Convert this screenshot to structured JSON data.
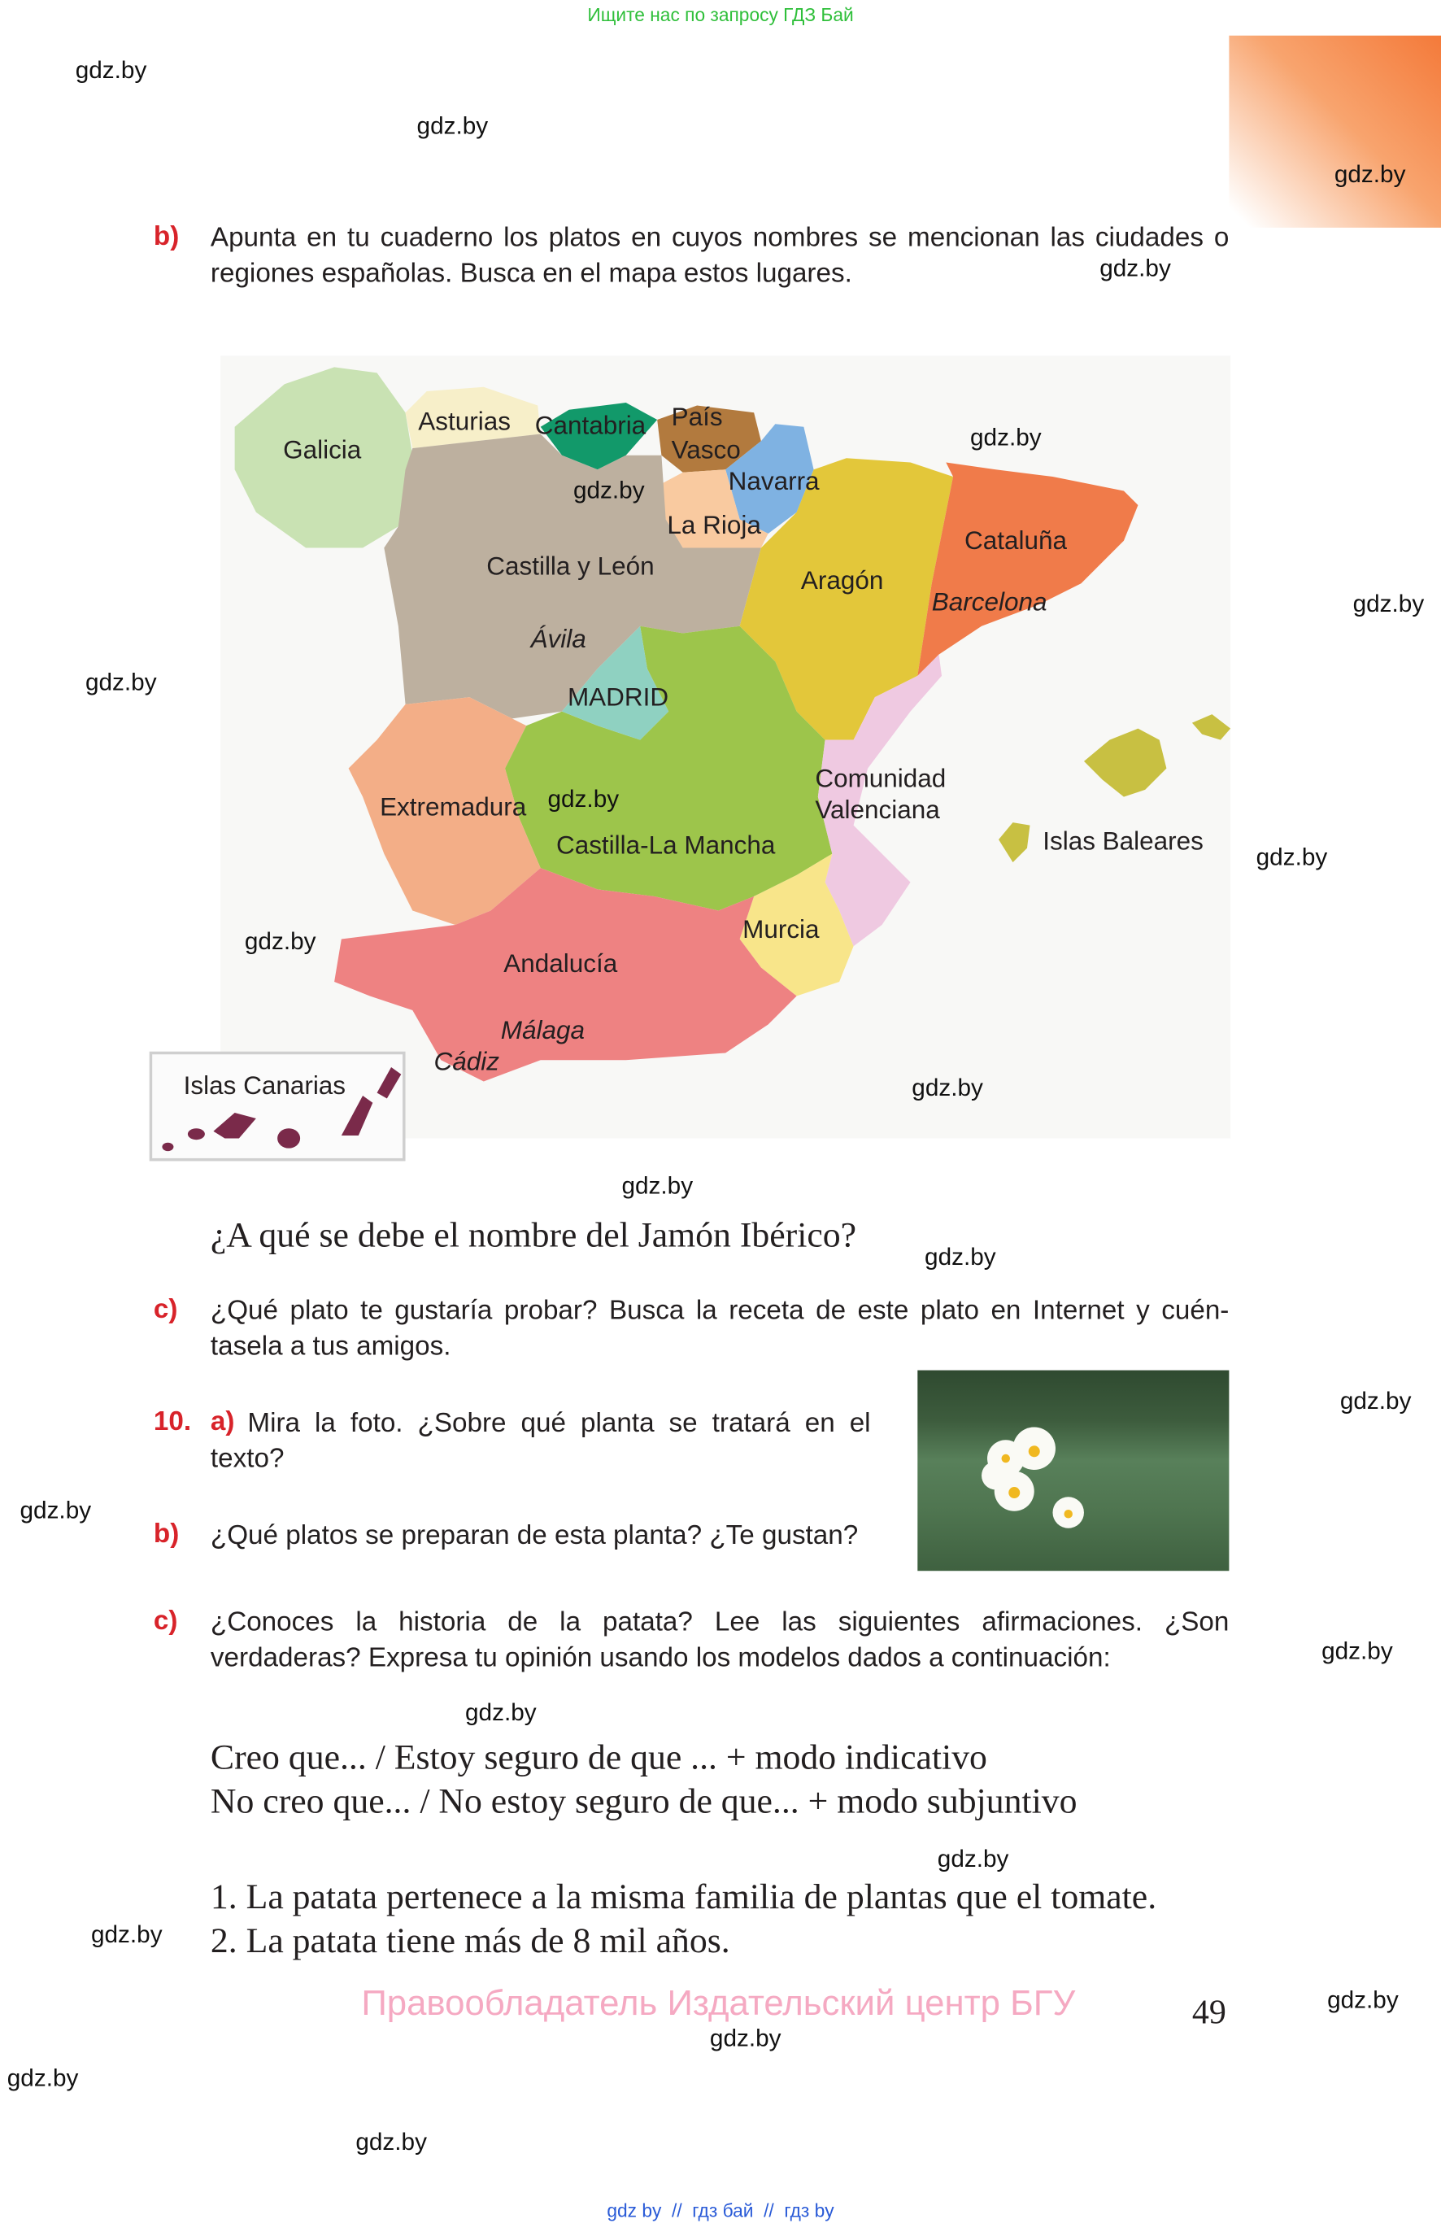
{
  "top_banner": "Ищите нас по запросу ГДЗ Бай",
  "watermark": "gdz.by",
  "exercise_9b": {
    "label": "b)",
    "text": "Apunta en tu cuaderno los platos en cuyos nombres se mencionan las ciudades o regiones españolas. Busca en el mapa estos lugares."
  },
  "map": {
    "regions": [
      {
        "name": "Galicia",
        "color": "#c9e2b3"
      },
      {
        "name": "Asturias",
        "color": "#f7efc9"
      },
      {
        "name": "Cantabria",
        "color": "#12996a"
      },
      {
        "name": "País Vasco",
        "color": "#b27a3e"
      },
      {
        "name": "Navarra",
        "color": "#7fb2e2"
      },
      {
        "name": "La Rioja",
        "color": "#f9caa0"
      },
      {
        "name": "Castilla y León",
        "color": "#bdb09f"
      },
      {
        "name": "Aragón",
        "color": "#e3c73a"
      },
      {
        "name": "Cataluña",
        "color": "#f07b4a"
      },
      {
        "name": "MADRID",
        "color": "#8fd1c1"
      },
      {
        "name": "Castilla-La Mancha",
        "color": "#9dc54b"
      },
      {
        "name": "Extremadura",
        "color": "#f3ae87"
      },
      {
        "name": "Comunidad Valenciana",
        "color": "#efc9e1"
      },
      {
        "name": "Murcia",
        "color": "#f8e58a"
      },
      {
        "name": "Andalucía",
        "color": "#ee8282"
      },
      {
        "name": "Islas Baleares",
        "color": "#c8c042"
      },
      {
        "name": "Islas Canarias",
        "color": "#7a2a4a"
      }
    ],
    "labels": {
      "galicia": "Galicia",
      "asturias": "Asturias",
      "cantabria": "Cantabria",
      "pais1": "País",
      "pais2": "Vasco",
      "navarra": "Navarra",
      "rioja": "La Rioja",
      "cyl": "Castilla y León",
      "aragon": "Aragón",
      "cataluna": "Cataluña",
      "barcelona": "Barcelona",
      "avila": "Ávila",
      "madrid": "MADRID",
      "val1": "Comunidad",
      "val2": "Valenciana",
      "baleares": "Islas Baleares",
      "extremadura": "Extremadura",
      "clm": "Castilla-La Mancha",
      "murcia": "Murcia",
      "andalucia": "Andalucía",
      "malaga": "Málaga",
      "cadiz": "Cádiz",
      "canarias": "Islas Canarias"
    }
  },
  "question_jamon": "¿A qué se debe el nombre del Jamón Ibérico?",
  "exercise_9c": {
    "label": "c)",
    "text": "¿Qué plato te gustaría probar? Busca la receta de este plato en Internet y cuén-tasela a tus amigos."
  },
  "exercise_10": {
    "number": "10.",
    "a": {
      "label": "a)",
      "text": "Mira la foto. ¿Sobre qué planta se tratará en el texto?"
    },
    "b": {
      "label": "b)",
      "text": "¿Qué platos se preparan de esta planta? ¿Te gustan?"
    },
    "c": {
      "label": "c)",
      "text": "¿Conoces la historia de la patata? Lee las siguientes afirmaciones. ¿Son verdaderas? Expresa tu opinión usando los modelos dados a continuación:"
    },
    "models": [
      "Creo que... / Estoy seguro de que ... + modo indicativo",
      "No creo que... / No estoy seguro de que... + modo subjuntivo"
    ],
    "statements": [
      "1. La patata pertenece a la misma familia de plantas que el tomate.",
      "2. La patata tiene más de 8 mil años."
    ]
  },
  "copyright": "Правообладатель Издательский центр БГУ",
  "page_number": "49",
  "footer_links": "gdz by  //  гдз бай  //  гдз by",
  "colors": {
    "label_red": "#d8232a",
    "banner_green": "#2fbf3a",
    "copyright_pink": "#f5a9c2",
    "footer_blue": "#2a5bd7",
    "corner_orange": "#f47a3a"
  }
}
